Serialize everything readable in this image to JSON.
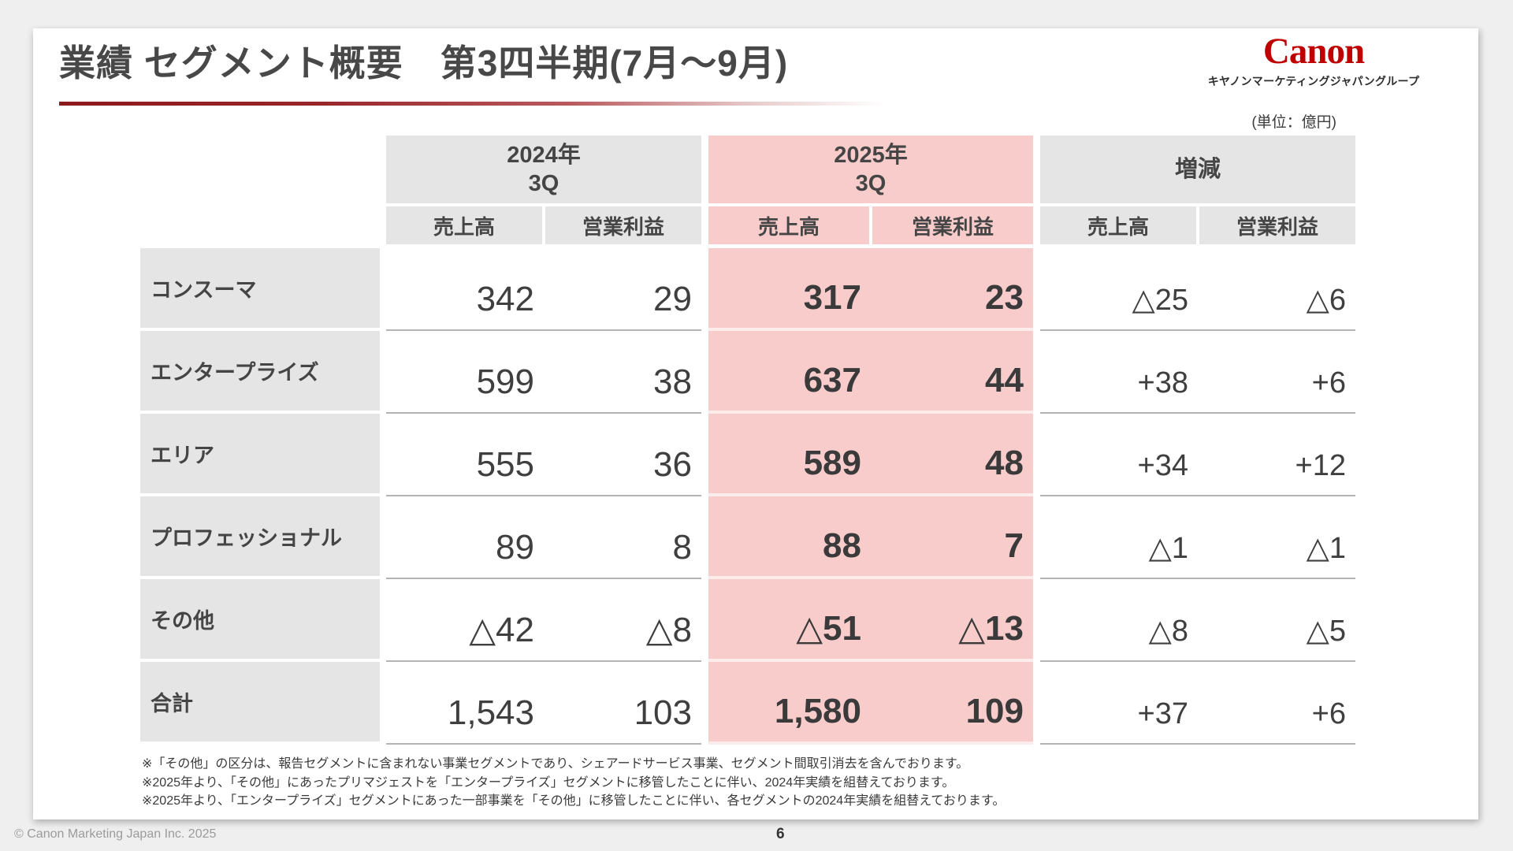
{
  "slide": {
    "title": "業績 セグメント概要　第3四半期(7月～9月)",
    "unit_label": "(単位：億円)",
    "logo": {
      "brand": "Canon",
      "subtitle": "キヤノンマーケティングジャパングループ"
    }
  },
  "table": {
    "col_groups": [
      {
        "title_line1": "2024年",
        "title_line2": "3Q",
        "sub": [
          "売上高",
          "営業利益"
        ]
      },
      {
        "title_line1": "2025年",
        "title_line2": "3Q",
        "sub": [
          "売上高",
          "営業利益"
        ]
      },
      {
        "title_line1": "増減",
        "sub": [
          "売上高",
          "営業利益"
        ]
      }
    ],
    "rows": [
      {
        "label": "コンスーマ",
        "y2024": [
          "342",
          "29"
        ],
        "y2025": [
          "317",
          "23"
        ],
        "change": [
          "△25",
          "△6"
        ]
      },
      {
        "label": "エンタープライズ",
        "y2024": [
          "599",
          "38"
        ],
        "y2025": [
          "637",
          "44"
        ],
        "change": [
          "+38",
          "+6"
        ]
      },
      {
        "label": "エリア",
        "y2024": [
          "555",
          "36"
        ],
        "y2025": [
          "589",
          "48"
        ],
        "change": [
          "+34",
          "+12"
        ]
      },
      {
        "label": "プロフェッショナル",
        "y2024": [
          "89",
          "8"
        ],
        "y2025": [
          "88",
          "7"
        ],
        "change": [
          "△1",
          "△1"
        ]
      },
      {
        "label": "その他",
        "y2024": [
          "△42",
          "△8"
        ],
        "y2025": [
          "△51",
          "△13"
        ],
        "change": [
          "△8",
          "△5"
        ]
      },
      {
        "label": "合計",
        "y2024": [
          "1,543",
          "103"
        ],
        "y2025": [
          "1,580",
          "109"
        ],
        "change": [
          "+37",
          "+6"
        ]
      }
    ]
  },
  "footnotes": [
    "※「その他」の区分は、報告セグメントに含まれない事業セグメントであり、シェアードサービス事業、セグメント間取引消去を含んでおります。",
    "※2025年より、「その他」にあったプリマジェストを「エンタープライズ」セグメントに移管したことに伴い、2024年実績を組替えております。",
    "※2025年より、「エンタープライズ」セグメントにあった一部事業を「その他」に移管したことに伴い、各セグメントの2024年実績を組替えております。"
  ],
  "footer": {
    "copyright": "© Canon Marketing Japan Inc. 2025",
    "page_number": "6"
  },
  "colors": {
    "accent_red": "#bf0000",
    "highlight_pink": "#f9cccc",
    "header_grey": "#e5e5e5",
    "rule_gradient_start": "#8e191d",
    "page_background": "#efefef"
  }
}
